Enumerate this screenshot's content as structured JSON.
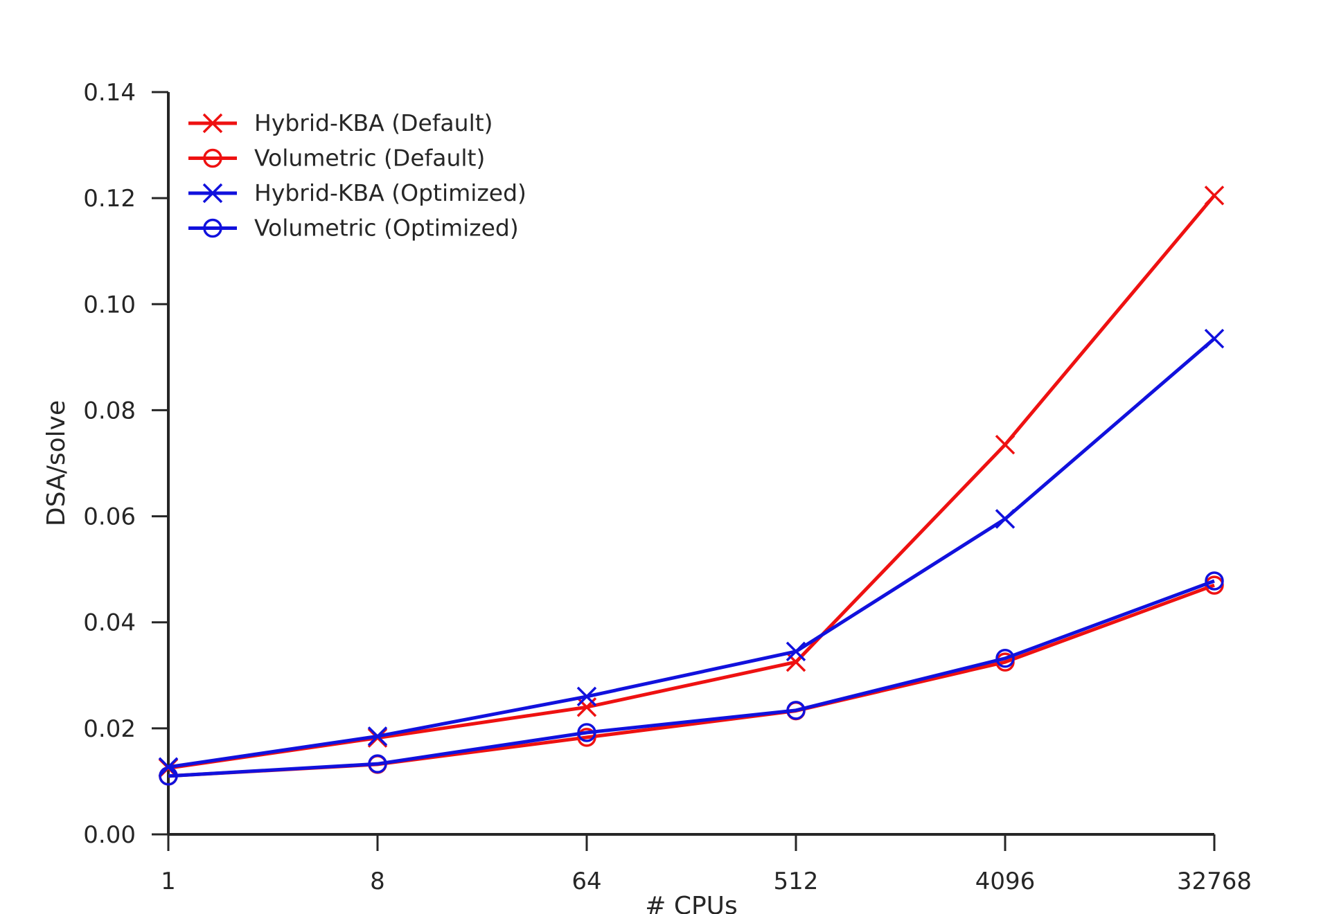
{
  "chart_data": {
    "type": "line",
    "title": "",
    "xlabel": "# CPUs",
    "ylabel": "DSA/solve",
    "x_scale": "log2",
    "x": [
      1,
      8,
      64,
      512,
      4096,
      32768
    ],
    "xtick_labels": [
      "1",
      "8",
      "64",
      "512",
      "4096",
      "32768"
    ],
    "ylim": [
      0,
      0.14
    ],
    "yticks": [
      0.0,
      0.02,
      0.04,
      0.06,
      0.08,
      0.1,
      0.12,
      0.14
    ],
    "ytick_labels": [
      "0.00",
      "0.02",
      "0.04",
      "0.06",
      "0.08",
      "0.10",
      "0.12",
      "0.14"
    ],
    "grid": false,
    "legend_position": "top-left",
    "series": [
      {
        "name": "Hybrid-KBA (Default)",
        "color": "#ee1111",
        "marker": "x",
        "values": [
          0.0125,
          0.0182,
          0.024,
          0.0325,
          0.0735,
          0.1205
        ]
      },
      {
        "name": "Volumetric (Default)",
        "color": "#ee1111",
        "marker": "o",
        "values": [
          0.011,
          0.0132,
          0.0183,
          0.0233,
          0.0325,
          0.047
        ]
      },
      {
        "name": "Hybrid-KBA (Optimized)",
        "color": "#1111dd",
        "marker": "x",
        "values": [
          0.0127,
          0.0185,
          0.026,
          0.0345,
          0.0595,
          0.0935
        ]
      },
      {
        "name": "Volumetric (Optimized)",
        "color": "#1111dd",
        "marker": "o",
        "values": [
          0.011,
          0.0133,
          0.0192,
          0.0234,
          0.0332,
          0.0478
        ]
      }
    ]
  }
}
